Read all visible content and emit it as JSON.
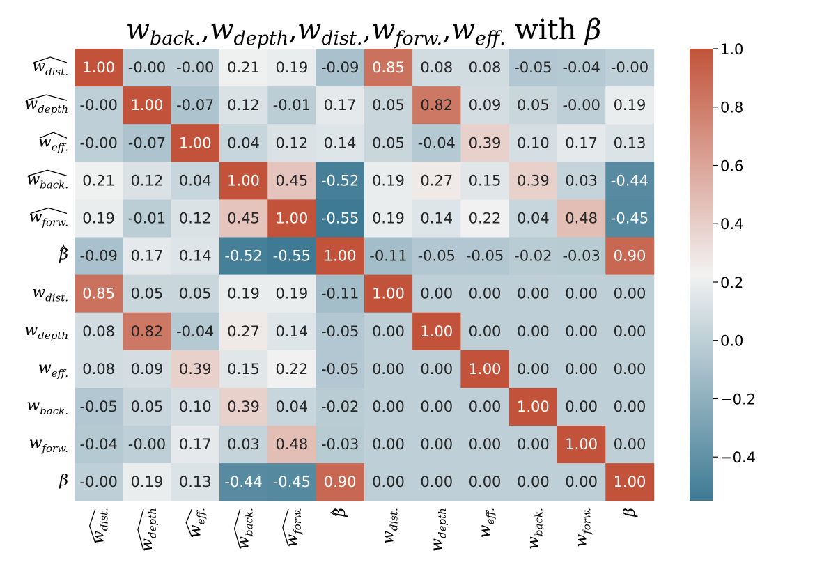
{
  "chart_data": {
    "type": "heatmap",
    "title": {
      "pre_terms": [
        {
          "base": "w",
          "sub": "back."
        },
        {
          "base": "w",
          "sub": "depth"
        },
        {
          "base": "w",
          "sub": "dist."
        },
        {
          "base": "w",
          "sub": "forw."
        },
        {
          "base": "w",
          "sub": "eff."
        }
      ],
      "separator": ",",
      "connector": "with",
      "last_term": {
        "base": "β",
        "sub": ""
      }
    },
    "labels": [
      {
        "base": "w",
        "sub": "dist.",
        "hat": true
      },
      {
        "base": "w",
        "sub": "depth",
        "hat": true
      },
      {
        "base": "w",
        "sub": "eff.",
        "hat": true
      },
      {
        "base": "w",
        "sub": "back.",
        "hat": true
      },
      {
        "base": "w",
        "sub": "forw.",
        "hat": true
      },
      {
        "base": "β",
        "sub": "",
        "hat": true
      },
      {
        "base": "w",
        "sub": "dist.",
        "hat": false
      },
      {
        "base": "w",
        "sub": "depth",
        "hat": false
      },
      {
        "base": "w",
        "sub": "eff.",
        "hat": false
      },
      {
        "base": "w",
        "sub": "back.",
        "hat": false
      },
      {
        "base": "w",
        "sub": "forw.",
        "hat": false
      },
      {
        "base": "β",
        "sub": "",
        "hat": false
      }
    ],
    "values": [
      [
        1.0,
        -0.0,
        -0.0,
        0.21,
        0.19,
        -0.09,
        0.85,
        0.08,
        0.08,
        -0.05,
        -0.04,
        -0.0
      ],
      [
        -0.0,
        1.0,
        -0.07,
        0.12,
        -0.01,
        0.17,
        0.05,
        0.82,
        0.09,
        0.05,
        -0.0,
        0.19
      ],
      [
        -0.0,
        -0.07,
        1.0,
        0.04,
        0.12,
        0.14,
        0.05,
        -0.04,
        0.39,
        0.1,
        0.17,
        0.13
      ],
      [
        0.21,
        0.12,
        0.04,
        1.0,
        0.45,
        -0.52,
        0.19,
        0.27,
        0.15,
        0.39,
        0.03,
        -0.44
      ],
      [
        0.19,
        -0.01,
        0.12,
        0.45,
        1.0,
        -0.55,
        0.19,
        0.14,
        0.22,
        0.04,
        0.48,
        -0.45
      ],
      [
        -0.09,
        0.17,
        0.14,
        -0.52,
        -0.55,
        1.0,
        -0.11,
        -0.05,
        -0.05,
        -0.02,
        -0.03,
        0.9
      ],
      [
        0.85,
        0.05,
        0.05,
        0.19,
        0.19,
        -0.11,
        1.0,
        0.0,
        0.0,
        0.0,
        0.0,
        0.0
      ],
      [
        0.08,
        0.82,
        -0.04,
        0.27,
        0.14,
        -0.05,
        0.0,
        1.0,
        0.0,
        0.0,
        0.0,
        0.0
      ],
      [
        0.08,
        0.09,
        0.39,
        0.15,
        0.22,
        -0.05,
        0.0,
        0.0,
        1.0,
        0.0,
        0.0,
        0.0
      ],
      [
        -0.05,
        0.05,
        0.1,
        0.39,
        0.04,
        -0.02,
        0.0,
        0.0,
        0.0,
        1.0,
        0.0,
        0.0
      ],
      [
        -0.04,
        -0.0,
        0.17,
        0.03,
        0.48,
        -0.03,
        0.0,
        0.0,
        0.0,
        0.0,
        1.0,
        0.0
      ],
      [
        -0.0,
        0.19,
        0.13,
        -0.44,
        -0.45,
        0.9,
        0.0,
        0.0,
        0.0,
        0.0,
        0.0,
        1.0
      ]
    ],
    "value_range": [
      -0.55,
      1.0
    ],
    "colormap": {
      "low": "#3e7a94",
      "center": "#f2f2f2",
      "high": "#c2533a",
      "center_value": 0.225
    },
    "colorbar": {
      "ticks": [
        -0.4,
        -0.2,
        0.0,
        0.2,
        0.4,
        0.6,
        0.8,
        1.0
      ],
      "tick_labels": [
        "−0.4",
        "−0.2",
        "0.0",
        "0.2",
        "0.4",
        "0.6",
        "0.8",
        "1.0"
      ],
      "placement": "right"
    },
    "annotation_format": "2 decimals"
  }
}
